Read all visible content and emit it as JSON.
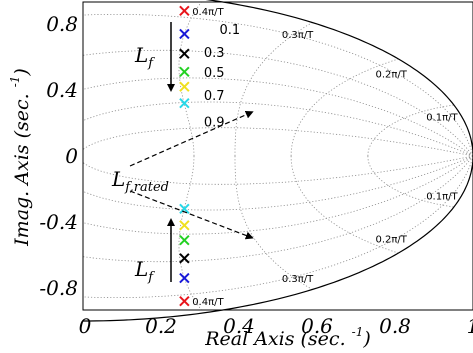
{
  "chart_data": {
    "type": "scatter",
    "title": "",
    "xlabel": "Real Axis (sec. ⁻¹)",
    "ylabel": "Imag. Axis (sec. ⁻¹)",
    "xlim": [
      0,
      1
    ],
    "ylim": [
      -1,
      1
    ],
    "x_ticks": [
      "0",
      "0.2",
      "0.4",
      "0.6",
      "0.8",
      "1"
    ],
    "y_ticks": [
      "0.8",
      "0.4",
      "0",
      "-0.4",
      "-0.8"
    ],
    "x_tick_values": [
      0,
      0.2,
      0.4,
      0.6,
      0.8,
      1.0
    ],
    "y_tick_values": [
      0.8,
      0.4,
      0,
      -0.4,
      -0.8
    ],
    "grid": true,
    "damping_labels": [
      "0.1",
      "0.3",
      "0.5",
      "0.7",
      "0.9"
    ],
    "damping_values": [
      0.1,
      0.3,
      0.5,
      0.7,
      0.9
    ],
    "natural_frequency_labels": [
      "0.4π/T",
      "0.3π/T",
      "0.2π/T",
      "0.1π/T"
    ],
    "natural_frequency_values": [
      0.4,
      0.3,
      0.2,
      0.1
    ],
    "annotations": {
      "lf": "L",
      "lf_sub": "f",
      "lf_rated_sub": "f,rated"
    },
    "series": [
      {
        "color": "#e8141b",
        "points": [
          [
            0.26,
            0.88
          ],
          [
            0.26,
            -0.88
          ]
        ]
      },
      {
        "color": "#1818d8",
        "points": [
          [
            0.26,
            0.74
          ],
          [
            0.26,
            -0.74
          ]
        ]
      },
      {
        "color": "#000000",
        "points": [
          [
            0.26,
            0.62
          ],
          [
            0.26,
            -0.62
          ]
        ]
      },
      {
        "color": "#22d022",
        "points": [
          [
            0.26,
            0.51
          ],
          [
            0.26,
            -0.51
          ]
        ]
      },
      {
        "color": "#f0e020",
        "points": [
          [
            0.26,
            0.42
          ],
          [
            0.26,
            -0.42
          ]
        ]
      },
      {
        "color": "#28d8e8",
        "points": [
          [
            0.26,
            0.32
          ],
          [
            0.26,
            -0.32
          ]
        ]
      }
    ]
  }
}
